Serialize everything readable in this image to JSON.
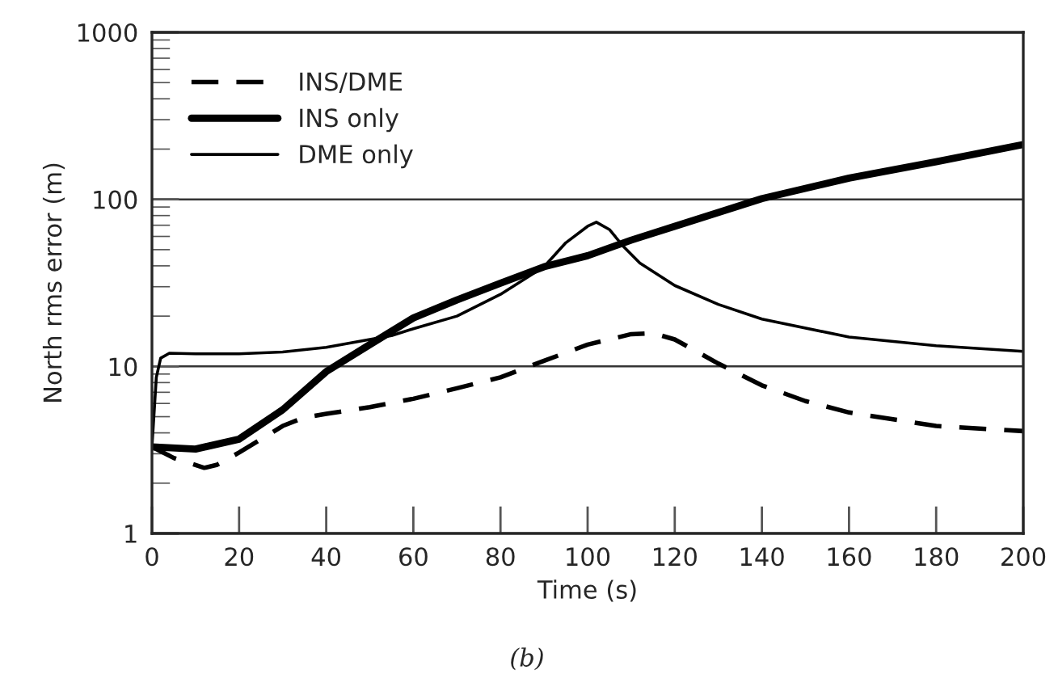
{
  "chart_data": {
    "type": "line",
    "xlabel": "Time (s)",
    "ylabel": "North rms error (m)",
    "log": "y",
    "xlim": [
      0,
      200
    ],
    "ylim": [
      1,
      1000
    ],
    "xticks": [
      0,
      20,
      40,
      60,
      80,
      100,
      120,
      140,
      160,
      180,
      200
    ],
    "yticks": [
      1,
      10,
      100,
      1000
    ],
    "grid": "y",
    "legend": "top left",
    "annotations": [
      "(b)"
    ],
    "series": [
      {
        "name": "INS/DME",
        "color": "#000000",
        "line_style": "dashed",
        "x": [
          0,
          5,
          12,
          15,
          20,
          30,
          35,
          40,
          50,
          60,
          70,
          80,
          90,
          100,
          110,
          115,
          120,
          130,
          140,
          150,
          160,
          180,
          200
        ],
        "values": [
          3.3,
          2.83,
          2.47,
          2.58,
          3.05,
          4.4,
          4.95,
          5.2,
          5.7,
          6.4,
          7.4,
          8.6,
          10.8,
          13.5,
          15.6,
          15.8,
          14.5,
          10.4,
          7.7,
          6.2,
          5.3,
          4.4,
          4.1
        ]
      },
      {
        "name": "INS only",
        "color": "#000000",
        "line_style": "solid",
        "x": [
          0,
          10,
          20,
          30,
          40,
          50,
          60,
          70,
          80,
          90,
          100,
          110,
          120,
          140,
          160,
          180,
          200
        ],
        "values": [
          3.3,
          3.2,
          3.67,
          5.5,
          9.3,
          13.5,
          19.5,
          25,
          31.5,
          39.5,
          46,
          57,
          69,
          101,
          134,
          168,
          213
        ]
      },
      {
        "name": "DME only",
        "color": "#000000",
        "line_style": "solid",
        "x": [
          0,
          1,
          2,
          4,
          10,
          20,
          30,
          40,
          50,
          55,
          60,
          70,
          80,
          90,
          95,
          100,
          102,
          105,
          108,
          112,
          120,
          130,
          140,
          160,
          180,
          200
        ],
        "values": [
          3.3,
          8.6,
          11.2,
          12.0,
          11.9,
          11.9,
          12.2,
          13,
          14.5,
          15.3,
          16.8,
          20,
          27,
          39.5,
          55,
          69,
          73,
          66,
          53,
          41.5,
          30.5,
          23.5,
          19.2,
          15,
          13.3,
          12.3
        ]
      }
    ]
  }
}
